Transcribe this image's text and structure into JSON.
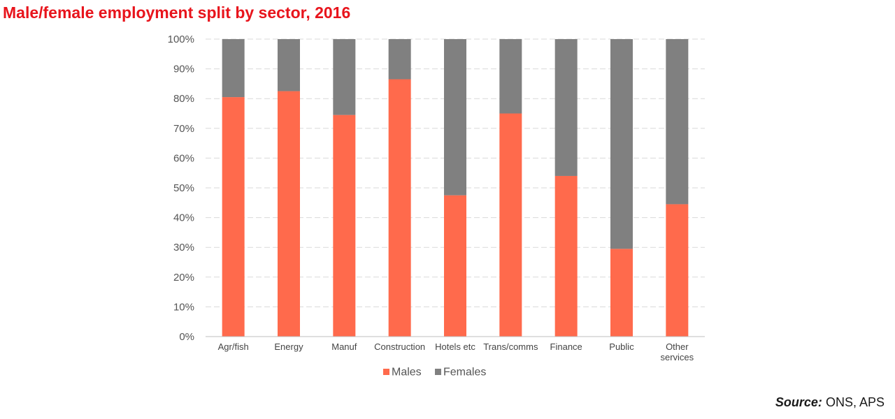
{
  "title": "Male/female employment split by sector, 2016",
  "source": {
    "label": "Source:",
    "text": "ONS, APS"
  },
  "chart_data": {
    "type": "bar",
    "stacked": true,
    "percent_stacked": true,
    "categories": [
      "Agr/fish",
      "Energy",
      "Manuf",
      "Construction",
      "Hotels etc",
      "Trans/comms",
      "Finance",
      "Public",
      "Other services"
    ],
    "series": [
      {
        "name": "Males",
        "color": "#ff6a4c",
        "values": [
          80.5,
          82.5,
          74.5,
          86.5,
          47.5,
          75,
          54,
          29.5,
          44.5
        ]
      },
      {
        "name": "Females",
        "color": "#808080",
        "values": [
          19.5,
          17.5,
          25.5,
          13.5,
          52.5,
          25,
          46,
          70.5,
          55.5
        ]
      }
    ],
    "ylim": [
      0,
      100
    ],
    "yticks": [
      "0%",
      "10%",
      "20%",
      "30%",
      "40%",
      "50%",
      "60%",
      "70%",
      "80%",
      "90%",
      "100%"
    ],
    "grid": true,
    "legend": "bottom-center",
    "xlabel": "",
    "ylabel": ""
  }
}
